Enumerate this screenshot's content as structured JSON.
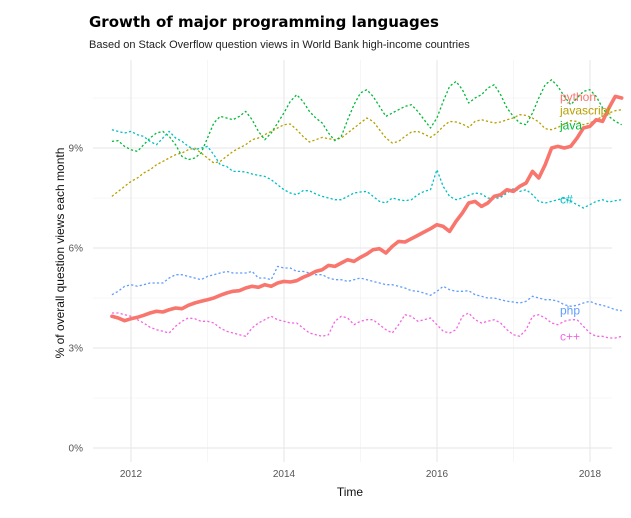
{
  "chart_data": {
    "type": "line",
    "title": "Growth of major programming languages",
    "subtitle": "Based on Stack Overflow question views in World Bank high-income countries",
    "xlabel": "Time",
    "ylabel": "% of overall question views each month",
    "xlim": [
      2011.5,
      2018.0
    ],
    "ylim": [
      -0.4,
      11.5
    ],
    "x_ticks": [
      2012,
      2014,
      2016,
      2018
    ],
    "x_tick_labels": [
      "2012",
      "2014",
      "2016",
      "2018"
    ],
    "x_minor_ticks": [
      2013,
      2015,
      2017
    ],
    "y_ticks": [
      0,
      3,
      6,
      9
    ],
    "y_tick_labels": [
      "0%",
      "3%",
      "6%",
      "9%"
    ],
    "y_minor_ticks": [
      1.5,
      4.5,
      7.5,
      10.5
    ],
    "grid": true,
    "legend": "direct-labels-right",
    "x_start": 2011.75,
    "x_step": 0.0833,
    "series": [
      {
        "name": "python",
        "color": "#F8766D",
        "style": "solid-thick",
        "values": [
          3.95,
          3.9,
          3.82,
          3.88,
          3.92,
          3.98,
          4.05,
          4.1,
          4.08,
          4.15,
          4.2,
          4.18,
          4.28,
          4.35,
          4.4,
          4.45,
          4.5,
          4.58,
          4.65,
          4.7,
          4.72,
          4.8,
          4.85,
          4.82,
          4.9,
          4.85,
          4.95,
          5.0,
          4.98,
          5.02,
          5.12,
          5.2,
          5.3,
          5.35,
          5.48,
          5.45,
          5.55,
          5.65,
          5.6,
          5.72,
          5.82,
          5.95,
          5.98,
          5.85,
          6.05,
          6.2,
          6.18,
          6.28,
          6.38,
          6.48,
          6.58,
          6.7,
          6.65,
          6.5,
          6.8,
          7.05,
          7.35,
          7.4,
          7.25,
          7.35,
          7.55,
          7.6,
          7.75,
          7.7,
          7.85,
          7.95,
          8.3,
          8.1,
          8.5,
          9.0,
          9.05,
          9.0,
          9.05,
          9.3,
          9.6,
          9.65,
          9.85,
          9.8,
          10.2,
          10.55,
          10.5
        ]
      },
      {
        "name": "javascript",
        "color": "#B79F00",
        "style": "dashed",
        "values": [
          7.55,
          7.7,
          7.85,
          8.0,
          8.1,
          8.25,
          8.35,
          8.5,
          8.6,
          8.7,
          8.8,
          8.85,
          8.95,
          9.0,
          8.85,
          8.7,
          8.55,
          8.6,
          8.75,
          8.9,
          9.0,
          9.1,
          9.25,
          9.3,
          9.4,
          9.5,
          9.6,
          9.7,
          9.72,
          9.55,
          9.35,
          9.18,
          9.25,
          9.32,
          9.28,
          9.25,
          9.3,
          9.45,
          9.6,
          9.75,
          9.9,
          9.8,
          9.55,
          9.3,
          9.15,
          9.2,
          9.35,
          9.48,
          9.5,
          9.42,
          9.32,
          9.45,
          9.65,
          9.8,
          9.78,
          9.72,
          9.62,
          9.8,
          9.85,
          9.8,
          9.75,
          9.78,
          9.85,
          9.9,
          10.0,
          9.98,
          9.9,
          9.78,
          9.58,
          9.55,
          9.62,
          9.72,
          9.82,
          9.8,
          9.7,
          9.75,
          9.85,
          9.95,
          10.05,
          10.12,
          10.15
        ]
      },
      {
        "name": "java",
        "color": "#00BA38",
        "style": "dashed",
        "values": [
          9.2,
          9.22,
          9.05,
          8.95,
          8.9,
          9.1,
          9.3,
          9.45,
          9.5,
          9.35,
          9.1,
          8.75,
          8.65,
          8.7,
          8.85,
          9.3,
          9.75,
          9.95,
          9.9,
          9.85,
          9.95,
          10.1,
          9.85,
          9.5,
          9.25,
          9.45,
          9.75,
          10.05,
          10.4,
          10.6,
          10.4,
          10.1,
          9.9,
          9.75,
          9.45,
          9.22,
          9.35,
          9.85,
          10.3,
          10.65,
          10.75,
          10.55,
          10.25,
          9.95,
          10.05,
          10.15,
          10.25,
          10.3,
          10.1,
          9.85,
          9.6,
          9.9,
          10.4,
          10.85,
          11.0,
          10.75,
          10.35,
          10.5,
          10.6,
          10.8,
          10.9,
          10.6,
          10.2,
          9.95,
          9.75,
          9.7,
          10.05,
          10.5,
          10.9,
          11.05,
          10.85,
          10.55,
          10.3,
          10.5,
          10.7,
          10.75,
          10.55,
          10.2,
          9.95,
          9.8,
          9.7
        ]
      },
      {
        "name": "c#",
        "color": "#00BFC4",
        "style": "dashed",
        "values": [
          9.55,
          9.5,
          9.45,
          9.5,
          9.4,
          9.35,
          9.2,
          9.1,
          9.3,
          9.5,
          9.3,
          9.2,
          9.05,
          8.95,
          9.0,
          9.05,
          8.8,
          8.5,
          8.45,
          8.3,
          8.3,
          8.28,
          8.22,
          8.18,
          8.15,
          8.05,
          7.9,
          7.75,
          7.65,
          7.6,
          7.72,
          7.72,
          7.62,
          7.55,
          7.5,
          7.45,
          7.45,
          7.55,
          7.65,
          7.68,
          7.7,
          7.55,
          7.4,
          7.35,
          7.5,
          7.45,
          7.42,
          7.45,
          7.6,
          7.7,
          7.75,
          8.35,
          7.85,
          7.55,
          7.45,
          7.5,
          7.58,
          7.65,
          7.62,
          7.5,
          7.48,
          7.52,
          7.65,
          7.78,
          7.7,
          7.75,
          7.6,
          7.4,
          7.35,
          7.4,
          7.45,
          7.5,
          7.4,
          7.3,
          7.2,
          7.3,
          7.4,
          7.45,
          7.38,
          7.42,
          7.45
        ]
      },
      {
        "name": "php",
        "color": "#619CFF",
        "style": "dashed",
        "values": [
          4.6,
          4.7,
          4.85,
          4.9,
          4.85,
          4.9,
          4.95,
          4.95,
          4.95,
          5.1,
          5.2,
          5.2,
          5.15,
          5.1,
          5.05,
          5.15,
          5.2,
          5.25,
          5.3,
          5.25,
          5.25,
          5.25,
          5.3,
          5.1,
          5.1,
          5.05,
          5.45,
          5.4,
          5.4,
          5.3,
          5.3,
          5.25,
          5.2,
          5.2,
          5.1,
          5.05,
          5.05,
          5.0,
          5.05,
          5.1,
          5.05,
          5.0,
          4.95,
          4.9,
          4.9,
          4.85,
          4.8,
          4.72,
          4.7,
          4.65,
          4.58,
          4.7,
          4.85,
          4.75,
          4.7,
          4.7,
          4.72,
          4.6,
          4.55,
          4.5,
          4.5,
          4.45,
          4.4,
          4.38,
          4.35,
          4.4,
          4.55,
          4.5,
          4.45,
          4.45,
          4.4,
          4.3,
          4.25,
          4.28,
          4.35,
          4.4,
          4.32,
          4.28,
          4.22,
          4.15,
          4.12
        ]
      },
      {
        "name": "c++",
        "color": "#F564E3",
        "style": "dashed",
        "values": [
          4.05,
          4.05,
          4.0,
          3.95,
          3.85,
          3.75,
          3.62,
          3.55,
          3.5,
          3.45,
          3.65,
          3.8,
          3.9,
          3.88,
          3.8,
          3.8,
          3.75,
          3.6,
          3.5,
          3.45,
          3.4,
          3.35,
          3.6,
          3.75,
          3.85,
          3.95,
          3.85,
          3.8,
          3.75,
          3.75,
          3.6,
          3.45,
          3.4,
          3.35,
          3.4,
          3.8,
          3.95,
          3.9,
          3.7,
          3.8,
          3.85,
          3.85,
          3.7,
          3.55,
          3.45,
          3.7,
          4.0,
          3.95,
          3.8,
          3.85,
          3.9,
          3.7,
          3.5,
          3.45,
          3.55,
          3.95,
          4.05,
          3.85,
          3.75,
          3.8,
          3.85,
          3.75,
          3.55,
          3.4,
          3.35,
          3.55,
          3.95,
          4.0,
          3.9,
          3.75,
          3.7,
          3.8,
          3.85,
          3.85,
          3.65,
          3.45,
          3.35,
          3.35,
          3.3,
          3.3,
          3.35
        ]
      }
    ]
  }
}
